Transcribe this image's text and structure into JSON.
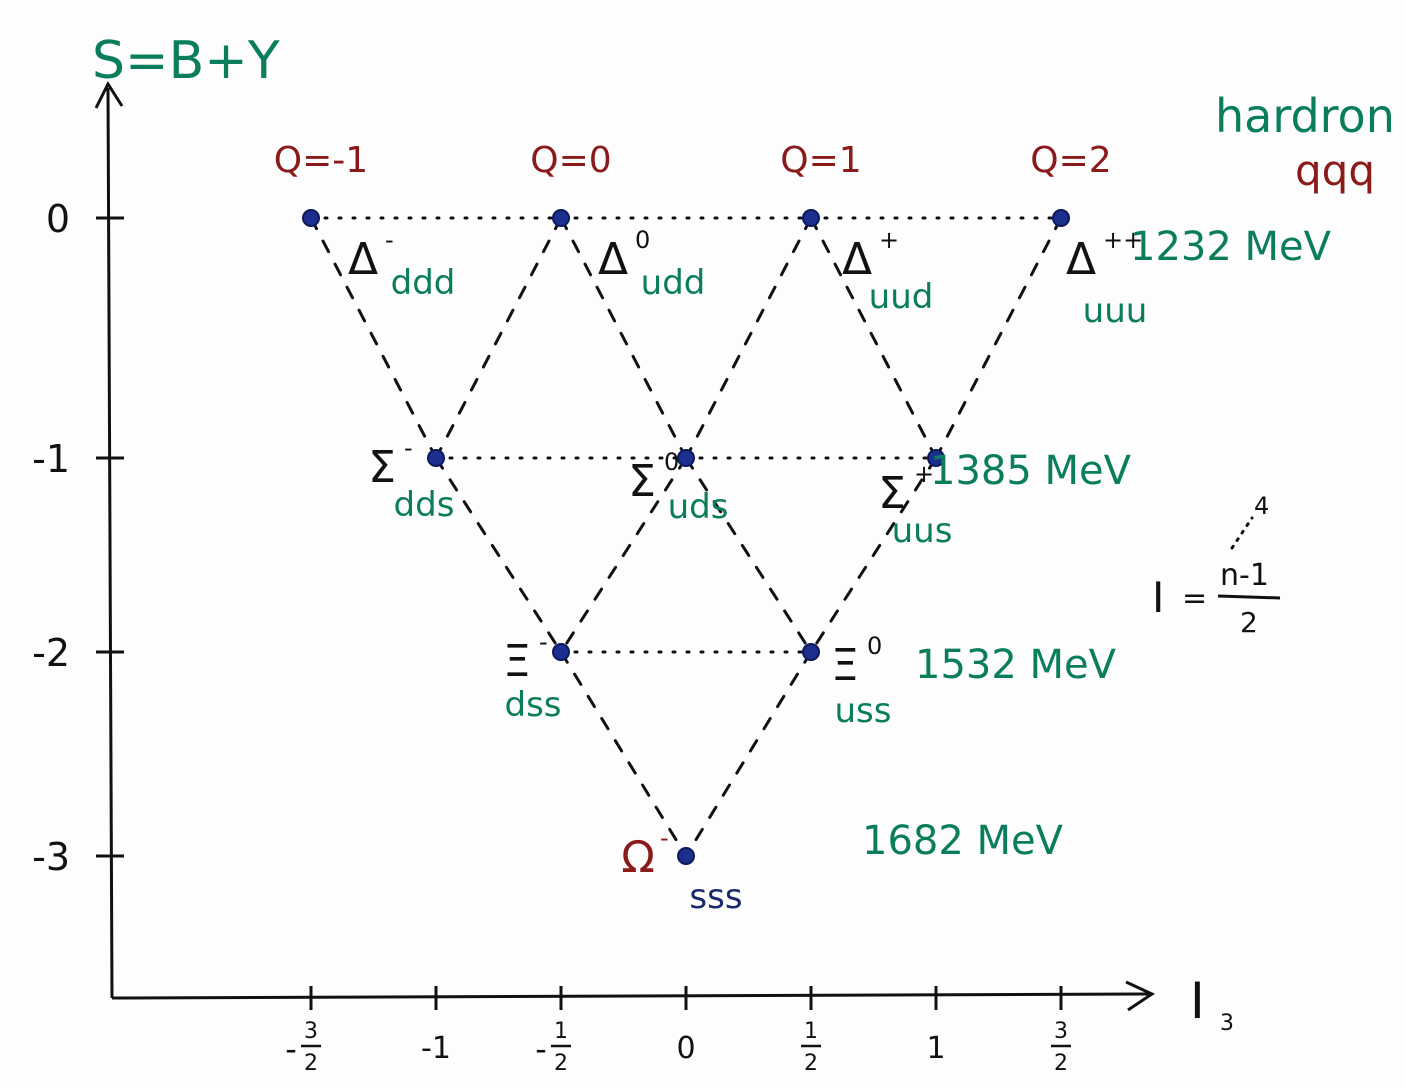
{
  "axes": {
    "y_label": "S=B+Y",
    "x_label": "I",
    "x_label_sub": "3",
    "y_ticks": [
      {
        "value": 0,
        "label": "0"
      },
      {
        "value": -1,
        "label": "-1"
      },
      {
        "value": -2,
        "label": "-2"
      },
      {
        "value": -3,
        "label": "-3"
      }
    ],
    "x_ticks": [
      {
        "value": -1.5,
        "label": "-3/2"
      },
      {
        "value": -1,
        "label": "-1"
      },
      {
        "value": -0.5,
        "label": "-1/2"
      },
      {
        "value": 0,
        "label": "0"
      },
      {
        "value": 0.5,
        "label": "1/2"
      },
      {
        "value": 1,
        "label": "1"
      },
      {
        "value": 1.5,
        "label": "3/2"
      }
    ]
  },
  "title": {
    "line1": "hardron",
    "line2": "qqq"
  },
  "charges": [
    {
      "i3": -1.5,
      "label": "Q=-1"
    },
    {
      "i3": -0.5,
      "label": "Q=0"
    },
    {
      "i3": 0.5,
      "label": "Q=1"
    },
    {
      "i3": 1.5,
      "label": "Q=2"
    }
  ],
  "particles": [
    {
      "name": "Δ",
      "sup": "-",
      "quarks": "ddd",
      "i3": -1.5,
      "s": 0
    },
    {
      "name": "Δ",
      "sup": "0",
      "quarks": "udd",
      "i3": -0.5,
      "s": 0
    },
    {
      "name": "Δ",
      "sup": "+",
      "quarks": "uud",
      "i3": 0.5,
      "s": 0
    },
    {
      "name": "Δ",
      "sup": "++",
      "quarks": "uuu",
      "i3": 1.5,
      "s": 0
    },
    {
      "name": "Σ",
      "sup": "-",
      "quarks": "dds",
      "i3": -1,
      "s": -1
    },
    {
      "name": "Σ",
      "sup": "0",
      "quarks": "uds",
      "i3": 0,
      "s": -1
    },
    {
      "name": "Σ",
      "sup": "+",
      "quarks": "uus",
      "i3": 1,
      "s": -1
    },
    {
      "name": "Ξ",
      "sup": "-",
      "quarks": "dss",
      "i3": -0.5,
      "s": -2
    },
    {
      "name": "Ξ",
      "sup": "0",
      "quarks": "uss",
      "i3": 0.5,
      "s": -2
    },
    {
      "name": "Ω",
      "sup": "-",
      "quarks": "sss",
      "i3": 0,
      "s": -3
    }
  ],
  "masses": [
    {
      "s": 0,
      "label": "1232 MeV"
    },
    {
      "s": -1,
      "label": "1385 MeV"
    },
    {
      "s": -2,
      "label": "1532 MeV"
    },
    {
      "s": -3,
      "label": "1682 MeV"
    }
  ],
  "formula": {
    "lhs": "I",
    "eq": "=",
    "numerator": "n-1",
    "denominator": "2",
    "note": "4"
  },
  "colors": {
    "green": "#0a7d5c",
    "red": "#8b1a1a",
    "blue": "#1c2f8f",
    "navy": "#1a2a6b",
    "black": "#111111"
  }
}
